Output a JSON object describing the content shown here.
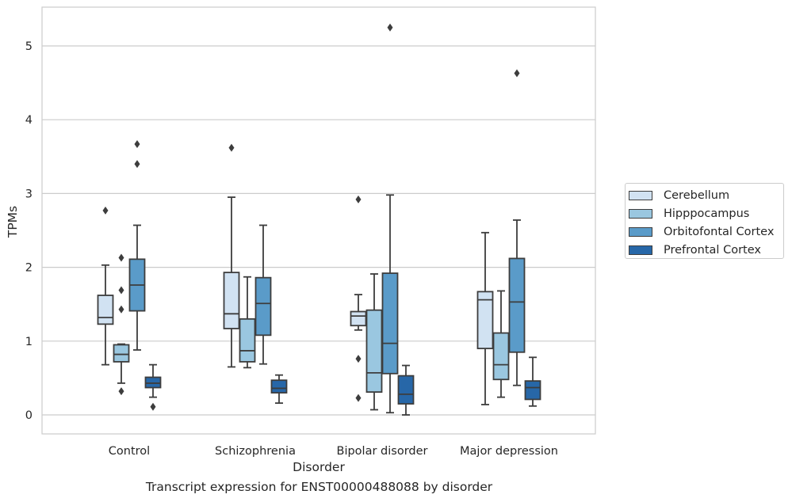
{
  "chart_data": {
    "type": "box",
    "caption": "Transcript expression for ENST00000488088 by disorder",
    "xlabel": "Disorder",
    "ylabel": "TPMs",
    "ylim": [
      -0.25,
      5.5
    ],
    "yticks": [
      0,
      1,
      2,
      3,
      4,
      5
    ],
    "grid": "horizontal",
    "legend_position": "right",
    "categories": [
      "Control",
      "Schizophrenia",
      "Bipolar disorder",
      "Major depression"
    ],
    "series": [
      {
        "name": "Cerebellum",
        "color": "#d1e2f2",
        "boxes": [
          {
            "whisker_low": 0.68,
            "q1": 1.23,
            "median": 1.32,
            "q3": 1.62,
            "whisker_high": 2.03,
            "outliers": [
              2.77
            ]
          },
          {
            "whisker_low": 0.65,
            "q1": 1.17,
            "median": 1.37,
            "q3": 1.93,
            "whisker_high": 2.95,
            "outliers": [
              3.62
            ]
          },
          {
            "whisker_low": 1.15,
            "q1": 1.21,
            "median": 1.34,
            "q3": 1.4,
            "whisker_high": 1.63,
            "outliers": [
              2.92,
              0.76,
              0.23
            ]
          },
          {
            "whisker_low": 0.14,
            "q1": 0.9,
            "median": 1.56,
            "q3": 1.67,
            "whisker_high": 2.47,
            "outliers": []
          }
        ]
      },
      {
        "name": "Hipppocampus",
        "color": "#9ac7e0",
        "boxes": [
          {
            "whisker_low": 0.43,
            "q1": 0.72,
            "median": 0.82,
            "q3": 0.95,
            "whisker_high": 0.96,
            "outliers": [
              2.13,
              1.69,
              1.43,
              0.32
            ]
          },
          {
            "whisker_low": 0.64,
            "q1": 0.72,
            "median": 0.87,
            "q3": 1.3,
            "whisker_high": 1.87,
            "outliers": []
          },
          {
            "whisker_low": 0.07,
            "q1": 0.31,
            "median": 0.57,
            "q3": 1.42,
            "whisker_high": 1.91,
            "outliers": []
          },
          {
            "whisker_low": 0.24,
            "q1": 0.48,
            "median": 0.68,
            "q3": 1.11,
            "whisker_high": 1.68,
            "outliers": []
          }
        ]
      },
      {
        "name": "Orbitofontal Cortex",
        "color": "#5a9bc9",
        "boxes": [
          {
            "whisker_low": 0.88,
            "q1": 1.41,
            "median": 1.76,
            "q3": 2.11,
            "whisker_high": 2.57,
            "outliers": [
              3.67,
              3.4
            ]
          },
          {
            "whisker_low": 0.69,
            "q1": 1.08,
            "median": 1.51,
            "q3": 1.86,
            "whisker_high": 2.57,
            "outliers": []
          },
          {
            "whisker_low": 0.03,
            "q1": 0.56,
            "median": 0.97,
            "q3": 1.92,
            "whisker_high": 2.98,
            "outliers": [
              5.25
            ]
          },
          {
            "whisker_low": 0.4,
            "q1": 0.85,
            "median": 1.53,
            "q3": 2.12,
            "whisker_high": 2.64,
            "outliers": [
              4.63
            ]
          }
        ]
      },
      {
        "name": "Prefrontal Cortex",
        "color": "#2767a8",
        "boxes": [
          {
            "whisker_low": 0.24,
            "q1": 0.37,
            "median": 0.43,
            "q3": 0.51,
            "whisker_high": 0.68,
            "outliers": [
              0.11
            ]
          },
          {
            "whisker_low": 0.16,
            "q1": 0.3,
            "median": 0.36,
            "q3": 0.47,
            "whisker_high": 0.54,
            "outliers": []
          },
          {
            "whisker_low": 0.0,
            "q1": 0.15,
            "median": 0.28,
            "q3": 0.53,
            "whisker_high": 0.67,
            "outliers": []
          },
          {
            "whisker_low": 0.12,
            "q1": 0.21,
            "median": 0.37,
            "q3": 0.46,
            "whisker_high": 0.78,
            "outliers": []
          }
        ]
      }
    ]
  }
}
